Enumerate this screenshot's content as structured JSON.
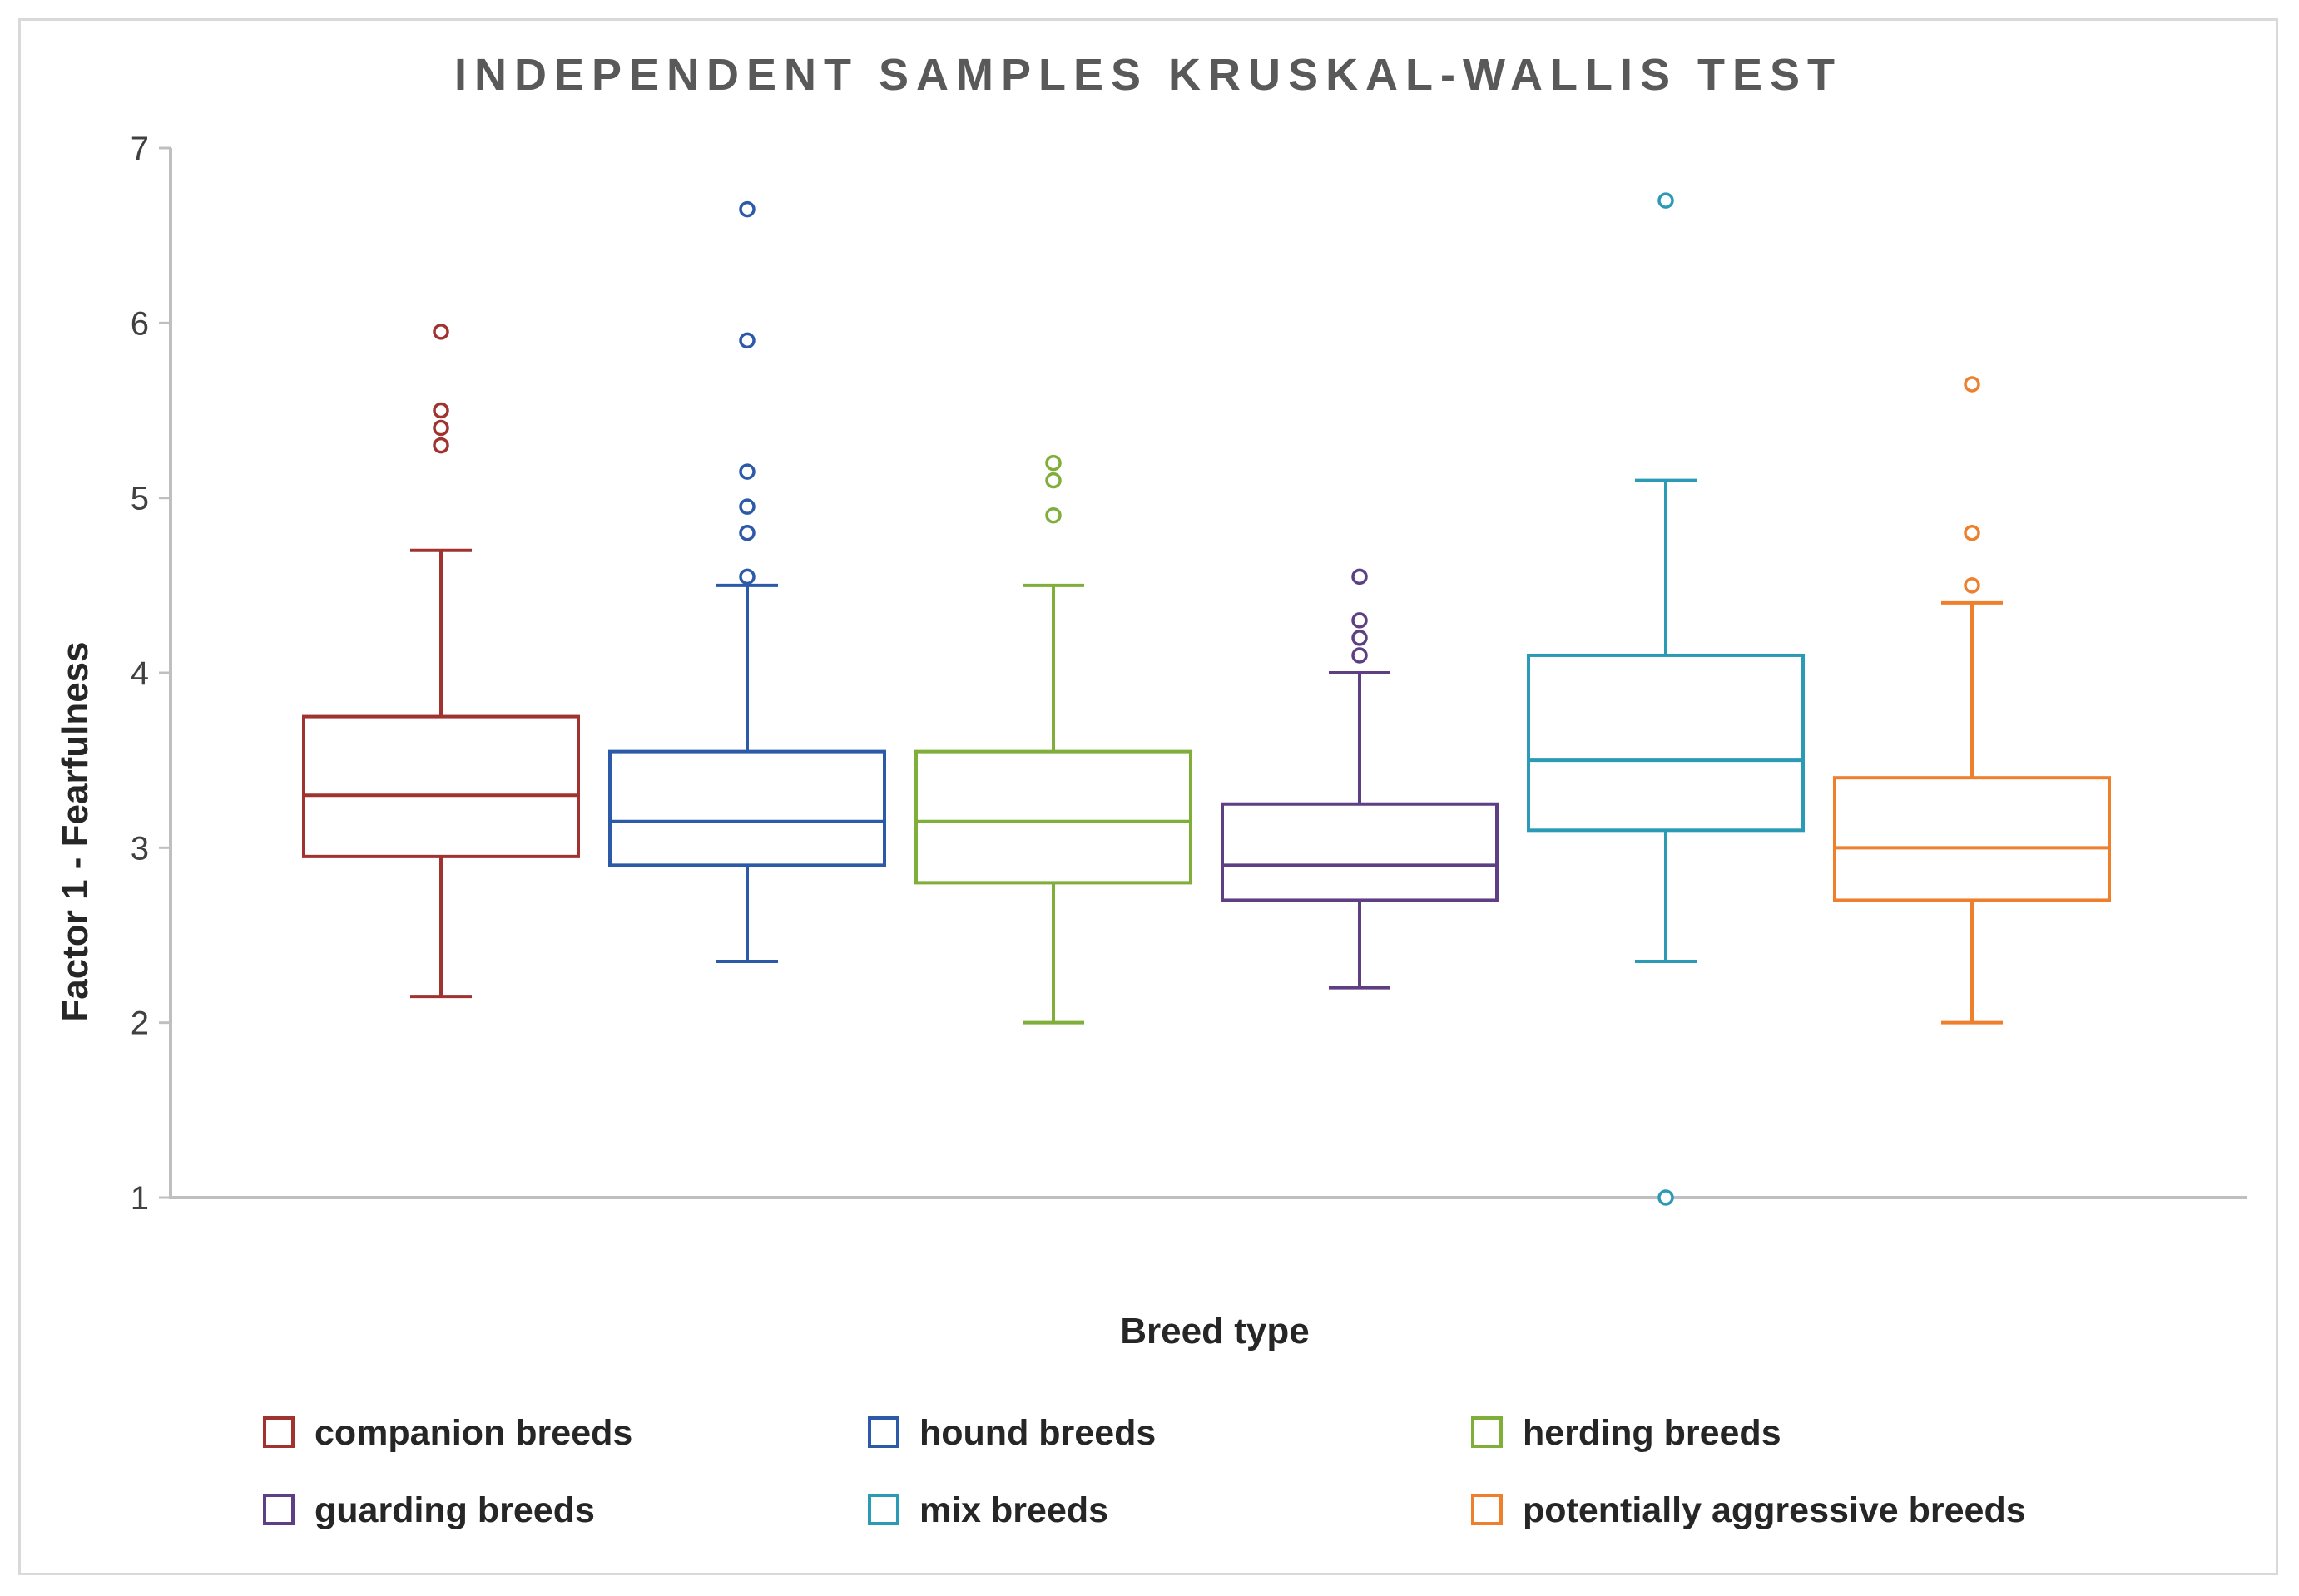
{
  "chart_data": {
    "type": "box",
    "title": "INDEPENDENT SAMPLES KRUSKAL-WALLIS TEST",
    "xlabel": "Breed type",
    "ylabel": "Factor 1 - Fearfulness",
    "ylim": [
      1,
      7
    ],
    "yticks": [
      "1",
      "2",
      "3",
      "4",
      "5",
      "6",
      "7"
    ],
    "grid": false,
    "legend_position": "bottom",
    "series": [
      {
        "name": "companion breeds",
        "color": "#a0332f",
        "min": 2.15,
        "q1": 2.95,
        "median": 3.3,
        "q3": 3.75,
        "max": 4.7,
        "outliers": [
          5.3,
          5.4,
          5.5,
          5.95
        ]
      },
      {
        "name": "hound breeds",
        "color": "#2c5aa8",
        "min": 2.35,
        "q1": 2.9,
        "median": 3.15,
        "q3": 3.55,
        "max": 4.5,
        "outliers": [
          4.55,
          4.8,
          4.95,
          5.15,
          5.9,
          6.65
        ]
      },
      {
        "name": "herding breeds",
        "color": "#7fae3a",
        "min": 2.0,
        "q1": 2.8,
        "median": 3.15,
        "q3": 3.55,
        "max": 4.5,
        "outliers": [
          4.9,
          5.1,
          5.2
        ]
      },
      {
        "name": "guarding breeds",
        "color": "#5f3f84",
        "min": 2.2,
        "q1": 2.7,
        "median": 2.9,
        "q3": 3.25,
        "max": 4.0,
        "outliers": [
          4.1,
          4.2,
          4.3,
          4.55
        ]
      },
      {
        "name": "mix breeds",
        "color": "#2a9ab5",
        "min": 2.35,
        "q1": 3.1,
        "median": 3.5,
        "q3": 4.1,
        "max": 5.1,
        "outliers": [
          1.0,
          6.7
        ]
      },
      {
        "name": "potentially aggressive breeds",
        "color": "#ee7f2d",
        "min": 2.0,
        "q1": 2.7,
        "median": 3.0,
        "q3": 3.4,
        "max": 4.4,
        "outliers": [
          4.5,
          4.8,
          5.65
        ]
      }
    ]
  }
}
